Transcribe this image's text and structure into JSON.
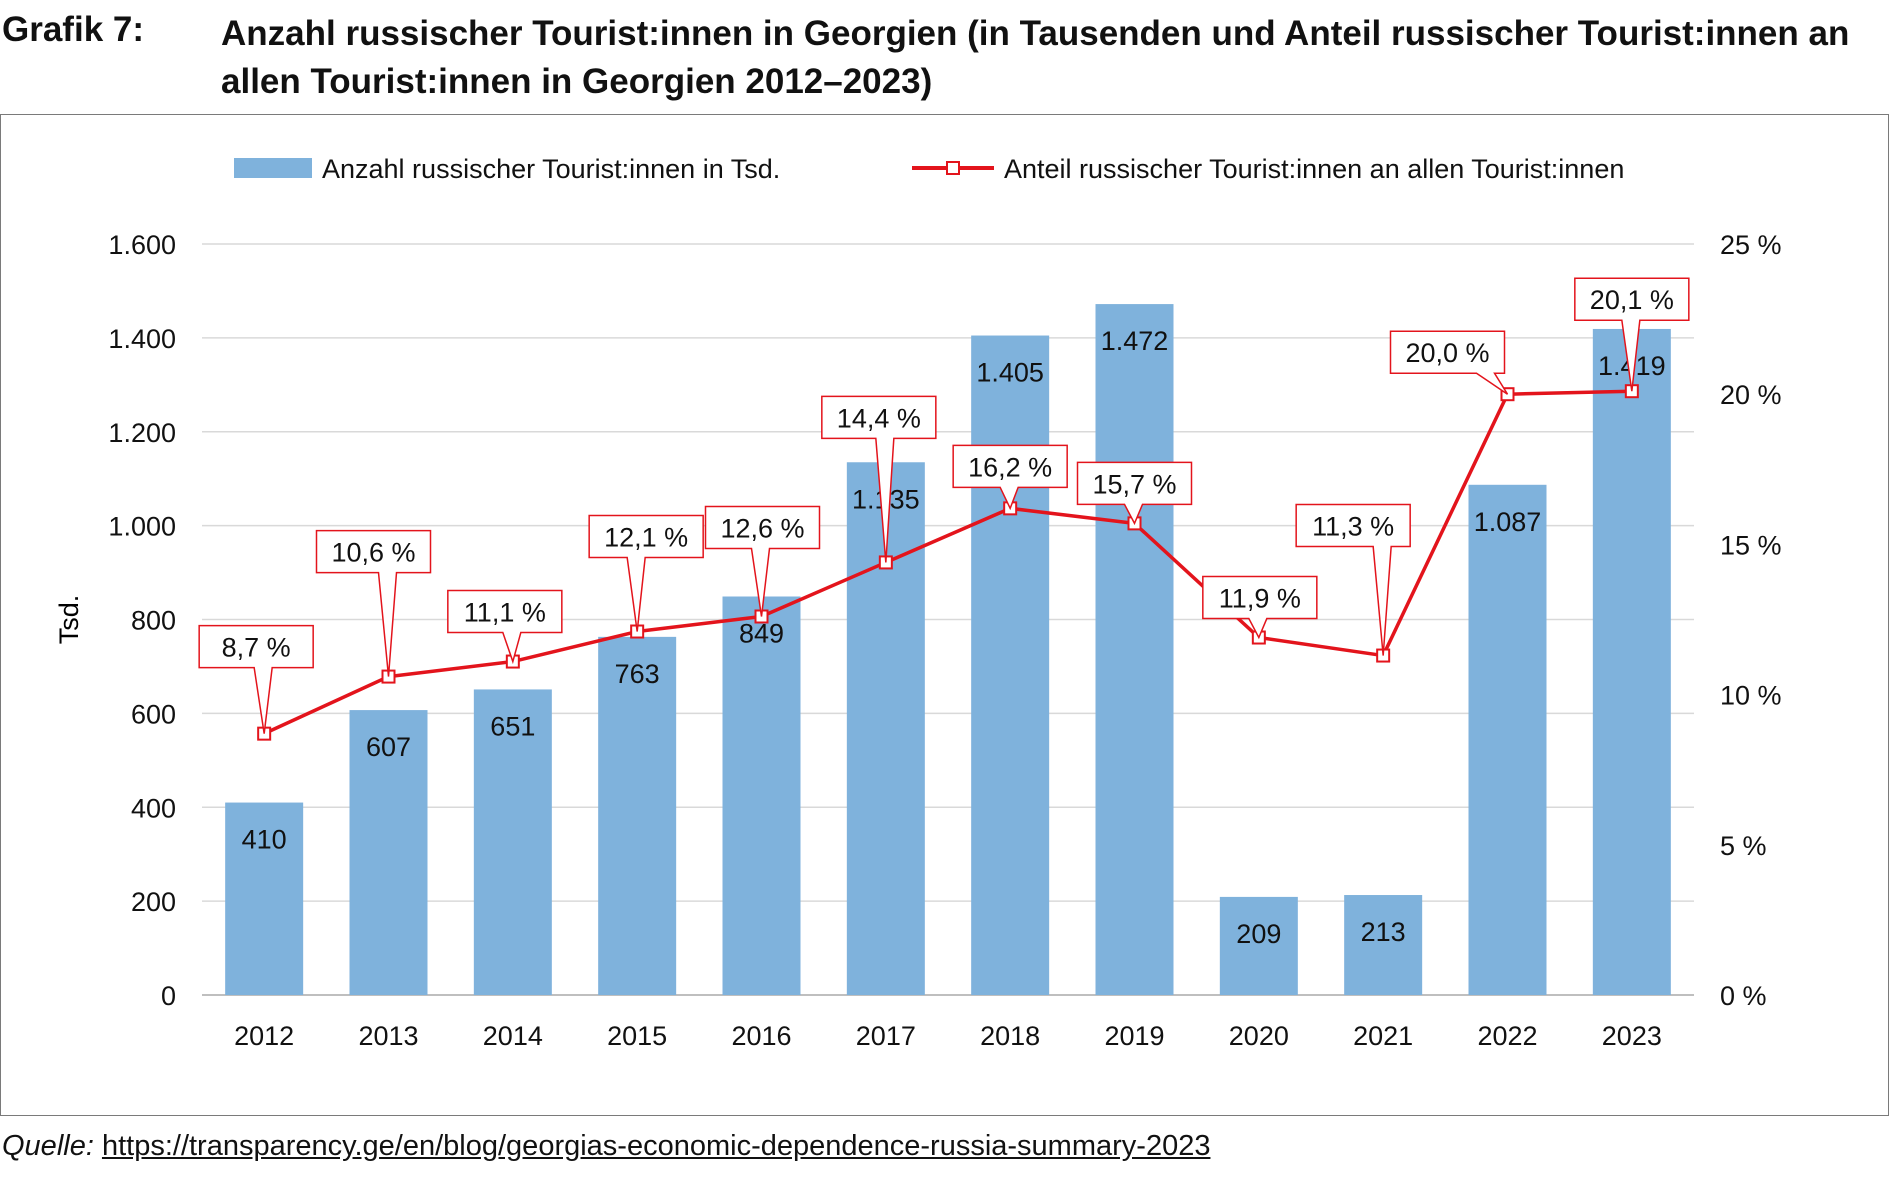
{
  "header": {
    "figure_label": "Grafik 7:",
    "title": "Anzahl russischer Tourist:innen in Georgien (in Tausenden und Anteil russischer Tourist:innen an allen Tourist:innen in Georgien 2012–2023)"
  },
  "source": {
    "label": "Quelle:",
    "url": "https://transparency.ge/en/blog/georgias-economic-dependence-russia-summary-2023"
  },
  "colors": {
    "bar": "#7fb2dc",
    "line": "#e3141c",
    "grid": "#d9d9d9",
    "axis": "#bfbfbf"
  },
  "chart_data": {
    "type": "bar",
    "title": "",
    "xlabel": "",
    "ylabel": "Tsd.",
    "categories": [
      "2012",
      "2013",
      "2014",
      "2015",
      "2016",
      "2017",
      "2018",
      "2019",
      "2020",
      "2021",
      "2022",
      "2023"
    ],
    "ylim": [
      0,
      1600
    ],
    "y_ticks": [
      0,
      200,
      400,
      600,
      800,
      1000,
      1200,
      1400,
      1600
    ],
    "y_tick_labels": [
      "0",
      "200",
      "400",
      "600",
      "800",
      "1.000",
      "1.200",
      "1.400",
      "1.600"
    ],
    "y2lim": [
      0,
      25
    ],
    "y2_ticks": [
      0,
      5,
      10,
      15,
      20,
      25
    ],
    "y2_tick_labels": [
      "0 %",
      "5 %",
      "10 %",
      "15 %",
      "20 %",
      "25 %"
    ],
    "grid": true,
    "legend_position": "top",
    "series": [
      {
        "name": "Anzahl russischer Tourist:innen in Tsd.",
        "type": "bar",
        "axis": "left",
        "values": [
          410,
          607,
          651,
          763,
          849,
          1135,
          1405,
          1472,
          209,
          213,
          1087,
          1419
        ],
        "labels": [
          "410",
          "607",
          "651",
          "763",
          "849",
          "1.135",
          "1.405",
          "1.472",
          "209",
          "213",
          "1.087",
          "1.419"
        ]
      },
      {
        "name": "Anteil russischer Tourist:innen an allen Tourist:innen",
        "type": "line",
        "axis": "right",
        "values": [
          8.7,
          10.6,
          11.1,
          12.1,
          12.6,
          14.4,
          16.2,
          15.7,
          11.9,
          11.3,
          20.0,
          20.1
        ],
        "labels": [
          "8,7 %",
          "10,6 %",
          "11,1 %",
          "12,1 %",
          "12,6 %",
          "14,4 %",
          "16,2 %",
          "15,7 %",
          "11,9 %",
          "11,3 %",
          "20,0 %",
          "20,1 %"
        ]
      }
    ]
  }
}
